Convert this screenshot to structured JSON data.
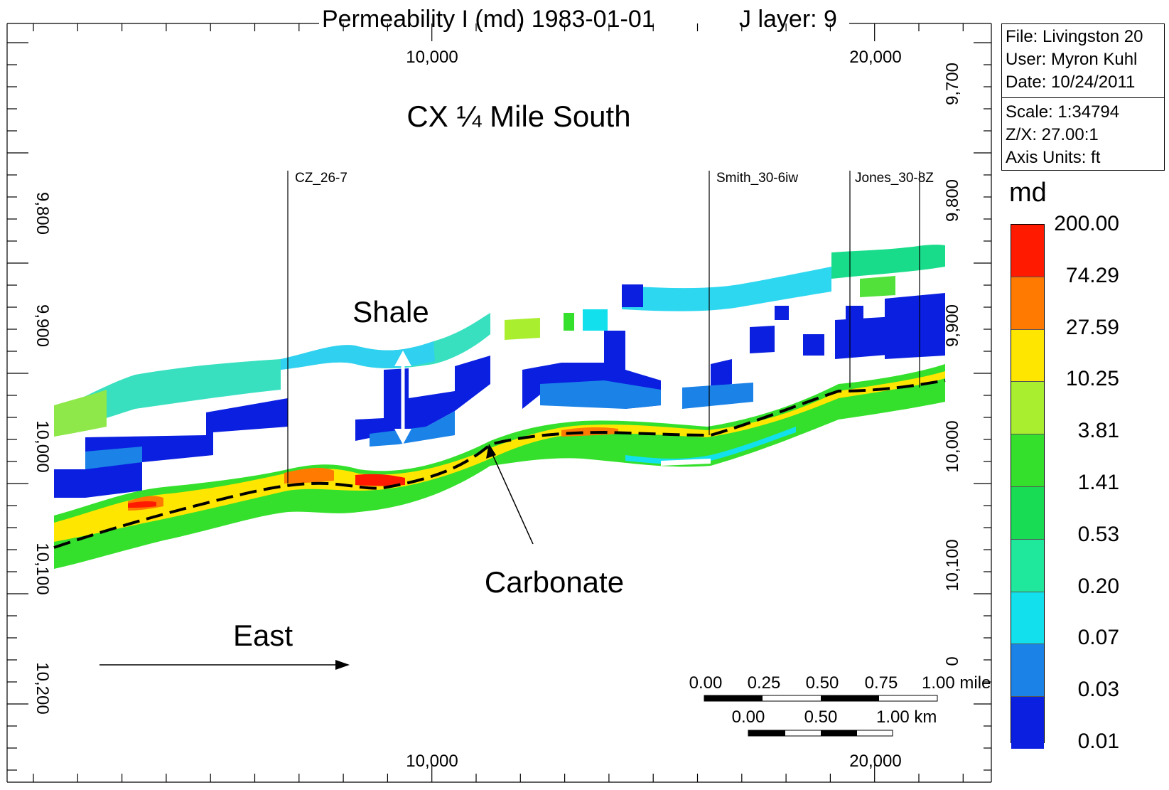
{
  "title": {
    "property": "Permeability I (md) 1983-01-01",
    "layer": "J layer: 9"
  },
  "section_label": "CX ¼ Mile South",
  "x_axis": {
    "top_ticks": [
      "10,000",
      "20,000"
    ],
    "bottom_ticks": [
      "10,000",
      "20,000"
    ]
  },
  "left_axis_ticks": [
    "9,800",
    "9,900",
    "10,000",
    "10,100",
    "10,200"
  ],
  "right_axis_ticks": [
    "9,700",
    "9,800",
    "9,900",
    "10,000",
    "10,100",
    "0"
  ],
  "wells": [
    "CZ_26-7",
    "Smith_30-6iw",
    "Jones_30-8Z"
  ],
  "annotations": {
    "shale": "Shale",
    "carbonate": "Carbonate",
    "east": "East"
  },
  "info": {
    "file": "File: Livingston 20",
    "user": "User:  Myron Kuhl",
    "date": "Date: 10/24/2011",
    "scale": "Scale: 1:34794",
    "zx": "Z/X: 27.00:1",
    "units": "Axis Units: ft"
  },
  "scale_bar": {
    "mile_labels": [
      "0.00",
      "0.25",
      "0.50",
      "0.75",
      "1.00 mile"
    ],
    "km_labels": [
      "0.00",
      "0.50",
      "1.00 km"
    ]
  },
  "legend": {
    "unit": "md",
    "values": [
      "200.00",
      "74.29",
      "27.59",
      "10.25",
      "3.81",
      "1.41",
      "0.53",
      "0.20",
      "0.07",
      "0.03",
      "0.01"
    ],
    "colors": [
      "#ff1a00",
      "#ff7a00",
      "#ffe600",
      "#a9ee2f",
      "#34e02b",
      "#19dc55",
      "#1fe89c",
      "#12e0ec",
      "#1b82e8",
      "#0a1fe0"
    ]
  }
}
